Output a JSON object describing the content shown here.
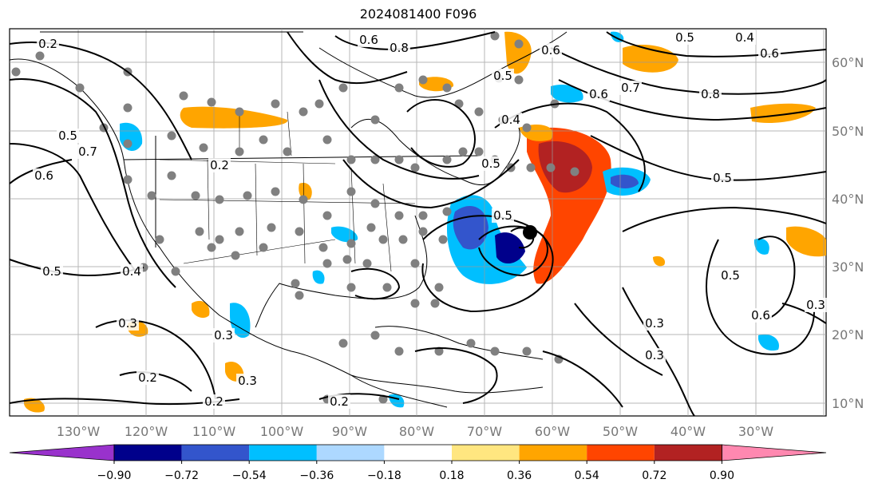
{
  "title": "2024081400 F096",
  "map": {
    "lon_labels": [
      "130°W",
      "120°W",
      "110°W",
      "100°W",
      "90°W",
      "80°W",
      "70°W",
      "60°W",
      "50°W",
      "40°W",
      "30°W"
    ],
    "lat_labels": [
      "60°N",
      "50°N",
      "40°N",
      "30°N",
      "20°N",
      "10°N"
    ],
    "contour_labels": [
      "0.2",
      "0.6",
      "0.8",
      "0.6",
      "0.5",
      "0.4",
      "0.5",
      "0.6",
      "0.7",
      "0.8",
      "0.6",
      "0.7",
      "0.6",
      "0.5",
      "0.2",
      "0.5",
      "0.5",
      "0.5",
      "0.4",
      "0.3",
      "0.3",
      "0.2",
      "0.3",
      "0.2",
      "0.5",
      "0.5",
      "0.6",
      "0.3",
      "0.3",
      "0.3",
      "0.4",
      "0.2"
    ]
  },
  "colorbar": {
    "ticks": [
      "−0.90",
      "−0.72",
      "−0.54",
      "−0.36",
      "−0.18",
      "0.18",
      "0.36",
      "0.54",
      "0.72",
      "0.90"
    ],
    "colors": [
      "#9932cc",
      "#00008b",
      "#3355cc",
      "#00bfff",
      "#add8ff",
      "#ffffff",
      "#ffe680",
      "#ffa500",
      "#ff4500",
      "#b22222",
      "#ff88b0"
    ]
  }
}
